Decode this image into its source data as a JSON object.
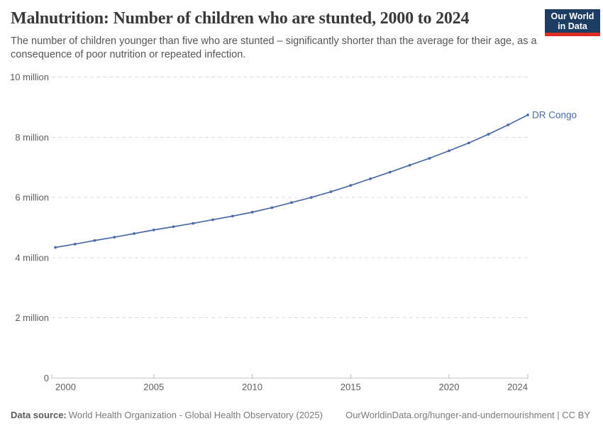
{
  "header": {
    "title": "Malnutrition: Number of children who are stunted, 2000 to 2024",
    "subtitle": "The number of children younger than five who are stunted – significantly shorter than the average for their age, as a consequence of poor nutrition or repeated infection.",
    "logo": {
      "line1": "Our World",
      "line2": "in Data",
      "bg_color": "#1d3d63",
      "bar_color": "#dc2e22"
    }
  },
  "chart_data": {
    "type": "line",
    "title": "Malnutrition: Number of children who are stunted, 2000 to 2024",
    "unit": "million children",
    "x": [
      2000,
      2001,
      2002,
      2003,
      2004,
      2005,
      2006,
      2007,
      2008,
      2009,
      2010,
      2011,
      2012,
      2013,
      2014,
      2015,
      2016,
      2017,
      2018,
      2019,
      2020,
      2021,
      2022,
      2023,
      2024
    ],
    "series": [
      {
        "name": "DR Congo",
        "color": "#4c6ba8",
        "values": [
          4.34,
          4.45,
          4.57,
          4.68,
          4.8,
          4.92,
          5.03,
          5.14,
          5.26,
          5.38,
          5.51,
          5.66,
          5.83,
          6.0,
          6.19,
          6.4,
          6.62,
          6.84,
          7.07,
          7.3,
          7.55,
          7.81,
          8.1,
          8.41,
          8.74
        ]
      }
    ],
    "xlabel": "",
    "ylabel": "",
    "ylim": [
      0,
      10
    ],
    "y_ticks": [
      {
        "value": 0,
        "label": "0"
      },
      {
        "value": 2,
        "label": "2 million"
      },
      {
        "value": 4,
        "label": "4 million"
      },
      {
        "value": 6,
        "label": "6 million"
      },
      {
        "value": 8,
        "label": "8 million"
      },
      {
        "value": 10,
        "label": "10 million"
      }
    ],
    "x_ticks": [
      2000,
      2005,
      2010,
      2015,
      2020,
      2024
    ],
    "grid": "horizontal-dashed",
    "legend": "end-of-line-label"
  },
  "footer": {
    "datasource_label": "Data source:",
    "datasource_text": "World Health Organization - Global Health Observatory (2025)",
    "link_text": "OurWorldinData.org/hunger-and-undernourishment | CC BY"
  }
}
